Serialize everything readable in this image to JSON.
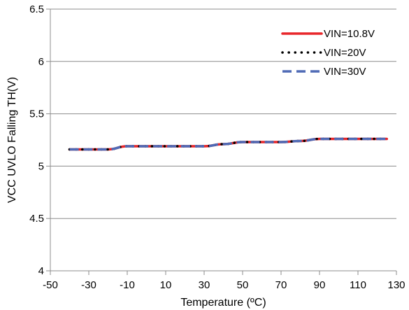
{
  "chart_data": {
    "type": "line",
    "title": "",
    "xlabel": "Temperature (ºC)",
    "ylabel": "VCC UVLO Falling TH(V)",
    "xlim": [
      -50,
      130
    ],
    "ylim": [
      4,
      6.5
    ],
    "xticks": [
      -50,
      -30,
      -10,
      10,
      30,
      50,
      70,
      90,
      110,
      130
    ],
    "xtick_labels": [
      "-50",
      "-30",
      "-10",
      "10",
      "30",
      "50",
      "70",
      "90",
      "110",
      "130"
    ],
    "yticks": [
      4,
      4.5,
      5,
      5.5,
      6,
      6.5
    ],
    "ytick_labels": [
      "4",
      "4.5",
      "5",
      "5.5",
      "6",
      "6.5"
    ],
    "grid": "horizontal",
    "legend_position": "top-right",
    "series": [
      {
        "name": "VIN=10.8V",
        "color": "#e8262a",
        "style": "solid",
        "x": [
          -40,
          -25,
          -20,
          -10,
          0,
          10,
          20,
          30,
          40,
          50,
          60,
          70,
          80,
          90,
          100,
          110,
          125
        ],
        "y": [
          5.16,
          5.16,
          5.16,
          5.19,
          5.19,
          5.19,
          5.19,
          5.19,
          5.21,
          5.23,
          5.23,
          5.23,
          5.24,
          5.26,
          5.26,
          5.26,
          5.26
        ]
      },
      {
        "name": "VIN=20V",
        "color": "#000000",
        "style": "dotted",
        "x": [
          -40,
          -25,
          -20,
          -10,
          0,
          10,
          20,
          30,
          40,
          50,
          60,
          70,
          80,
          90,
          100,
          110,
          125
        ],
        "y": [
          5.16,
          5.16,
          5.16,
          5.19,
          5.19,
          5.19,
          5.19,
          5.19,
          5.21,
          5.23,
          5.23,
          5.23,
          5.24,
          5.26,
          5.26,
          5.26,
          5.26
        ]
      },
      {
        "name": "VIN=30V",
        "color": "#4f6ab5",
        "style": "dashed",
        "x": [
          -40,
          -25,
          -20,
          -10,
          0,
          10,
          20,
          30,
          40,
          50,
          60,
          70,
          80,
          90,
          100,
          110,
          125
        ],
        "y": [
          5.16,
          5.16,
          5.16,
          5.19,
          5.19,
          5.19,
          5.19,
          5.19,
          5.21,
          5.23,
          5.23,
          5.23,
          5.24,
          5.26,
          5.26,
          5.26,
          5.26
        ]
      }
    ]
  }
}
